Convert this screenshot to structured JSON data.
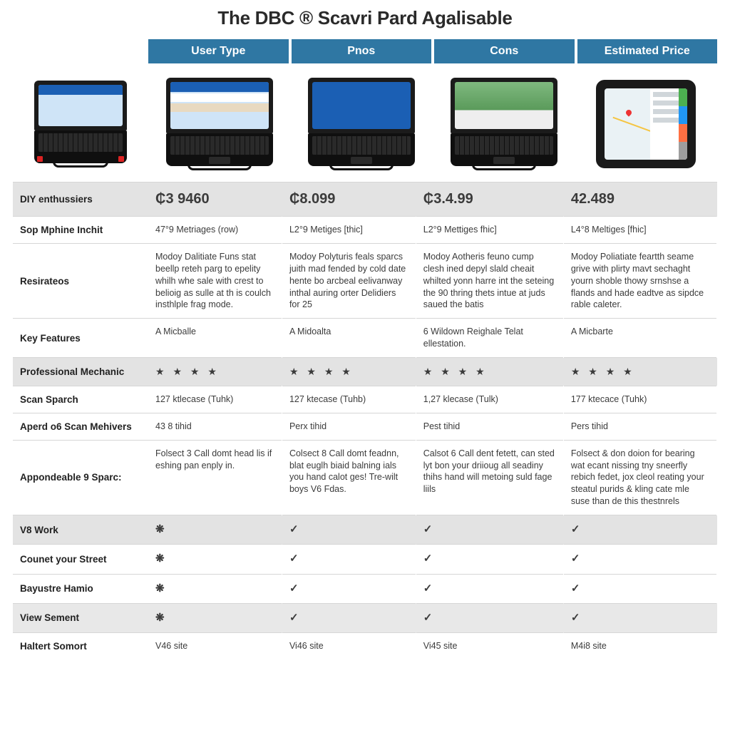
{
  "title": "The DBC ® Scavri Pard Agalisable",
  "header_cells": [
    "User Type",
    "Pnos",
    "Cons",
    "Estimated Price"
  ],
  "prices": [
    "₵3 9460",
    "₵8.099",
    "₵3.4.99",
    "42.489"
  ],
  "rows": {
    "diy_label": "DIY enthussiers",
    "sop_label": "Sop Mphine Inchit",
    "sop": [
      "47°9 Metriages (row)",
      "L2°9 Metiges [thic]",
      "L2°9 Mettiges fhic]",
      "L4°8 Meltiges [fhic]"
    ],
    "resir_label": "Resirateos",
    "resir": [
      "Modoy Dalitiate Funs stat beellp reteh parg to epelity whilh whe sale with crest to belioig as sulle at th is coulch insthlple frag mode.",
      "Modoy Polyturis feals sparcs juith mad fended by cold date hente bo arcbeal eelivanway inthal auring orter Delidiers for 25",
      "Modoy Aotheris feuno cump clesh ined depyl slald cheait whilted yonn harre int the seteing the 90 thring thets intue at juds saued the batis",
      "Modoy Poliatiate feartth seame grive with plirty mavt sechaght yourn shoble thowy srnshse a flands and hade eadtve as sipdce rable caleter."
    ],
    "key_label": "Key Features",
    "key": [
      "A Micballe",
      "A Midoalta",
      "6 Wildown Reighale Telat ellestation.",
      "A Micbarte"
    ],
    "pro_label": "Professional Mechanic",
    "stars": [
      "★ ★ ★ ★",
      "★ ★ ★ ★",
      "★ ★ ★ ★",
      "★ ★ ★ ★"
    ],
    "scan_label": "Scan Sparch",
    "scan": [
      "127 ktlecase (Tuhk)",
      "127 ktecase (Tuhb)",
      "1,27 klecase (Tulk)",
      "177 ktecace (Tuhk)"
    ],
    "aperd_label": "Aperd o6 Scan Mehivers",
    "aperd": [
      "43 8 tihid",
      "Perx tihid",
      "Pest tihid",
      "Pers tihid"
    ],
    "apon_label": "Appondeable 9 Sparc:",
    "apon": [
      "Folsect 3 Call domt head lis if eshing pan enply in.",
      "Colsect 8 Call domt feadnn, blat euglh biaid balning ials you hand calot ges! Tre-wilt boys V6 Fdas.",
      "Calsot 6 Call dent fetett, can sted lyt bon your driioug all seadiny thihs hand will metoing suld fage liils",
      "Folsect & don doion for bearing wat ecant nissing tny sneerfly rebich fedet, jox cleol reating your steatul purids & kling cate mle suse than de this thestnrels"
    ],
    "v8_label": "V8 Work",
    "v8": [
      "❋",
      "✓",
      "✓",
      "✓"
    ],
    "count_label": "Counet your Street",
    "count": [
      "❋",
      "✓",
      "✓",
      "✓"
    ],
    "bay_label": "Bayustre Hamio",
    "bay": [
      "❋",
      "✓",
      "✓",
      "✓"
    ],
    "view_label": "View Sement",
    "view": [
      "❋",
      "✓",
      "✓",
      "✓"
    ],
    "halt_label": "Haltert Somort",
    "halt": [
      "V46 site",
      "Vi46 site",
      "Vi45 site",
      "M4i8 site"
    ]
  },
  "colors": {
    "header_bg": "#2f77a3",
    "band_bg": "#e3e3e3",
    "price_color": "#2f77a3",
    "sep_color": "#d6d6d6",
    "star_color": "#2f77a3"
  }
}
